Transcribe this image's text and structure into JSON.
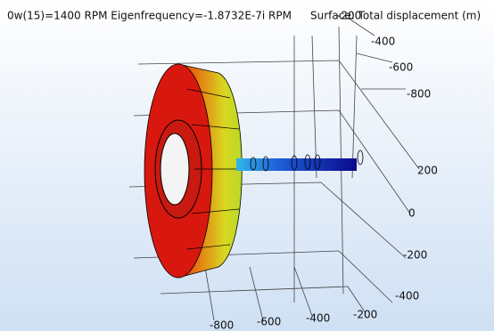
{
  "title": "0w(15)=1400 RPM Eigenfrequency=-1.8732E-7i RPM",
  "subtitle": "Surface: Total displacement (m)",
  "axes": {
    "top": [
      "-200",
      "-400",
      "-600",
      "-800"
    ],
    "right": [
      "200",
      "0",
      "-200",
      "-400"
    ],
    "bottom": [
      "-800",
      "-600",
      "-400",
      "-200"
    ]
  }
}
